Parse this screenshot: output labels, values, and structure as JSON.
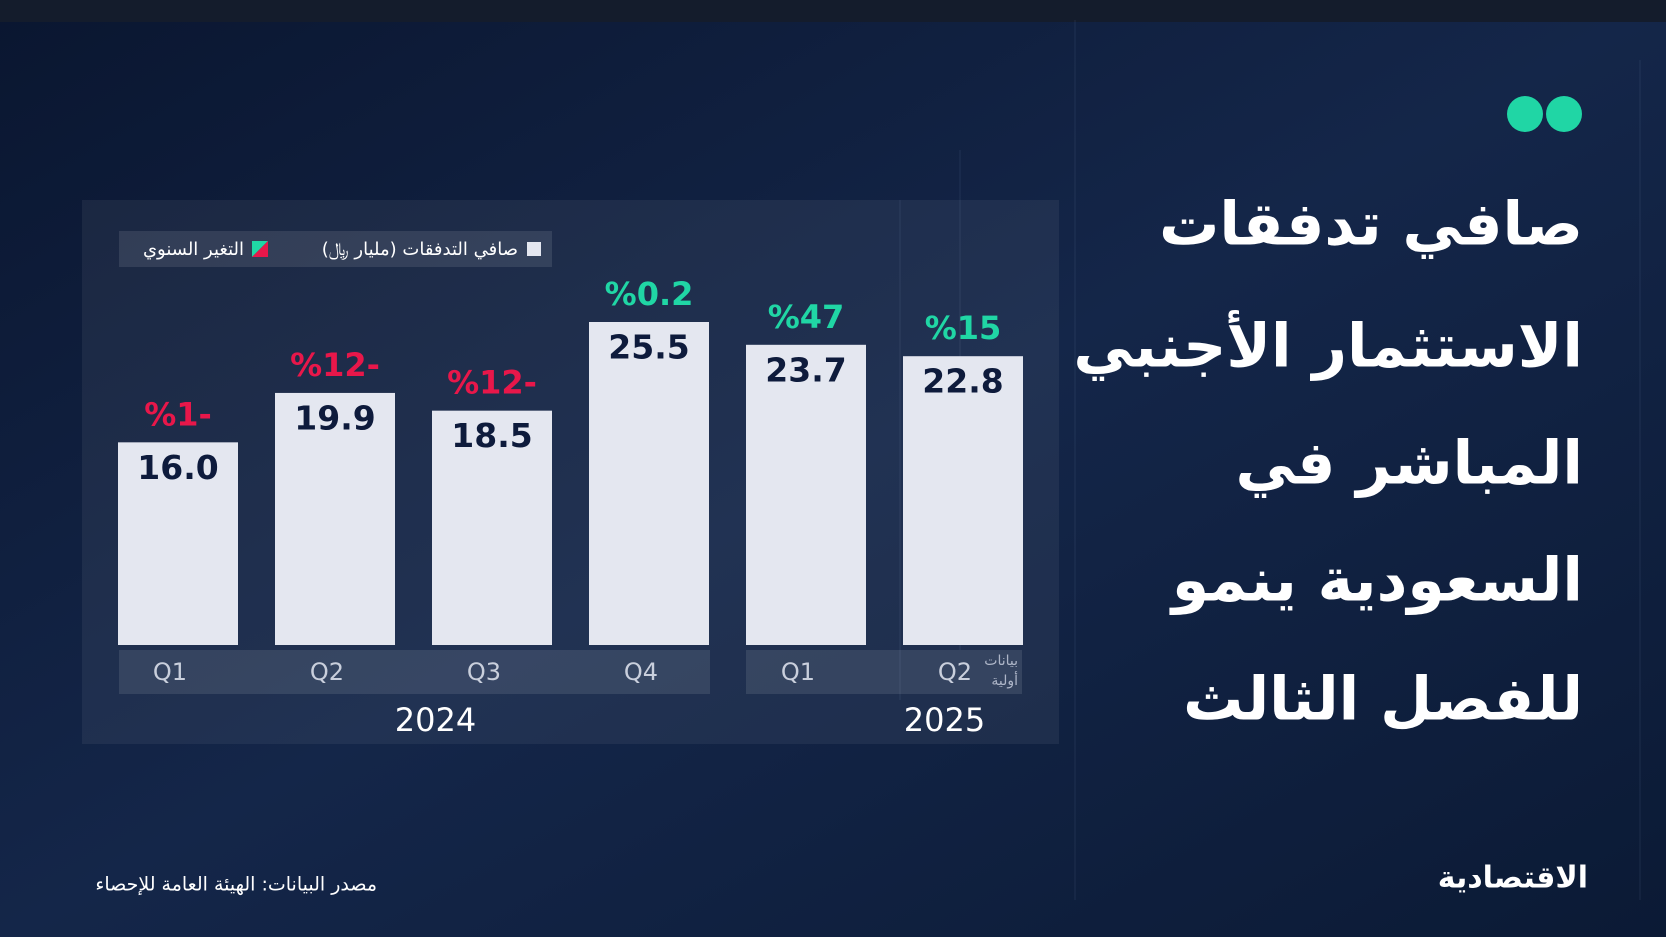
{
  "chart_data": {
    "type": "bar",
    "title_lines": [
      "صافي تدفقات",
      "الاستثمار الأجنبي",
      "المباشر في",
      "السعودية ينمو",
      "للفصل الثالث"
    ],
    "groups": [
      {
        "name": "2024",
        "categories": [
          "Q1",
          "Q2",
          "Q3",
          "Q4"
        ]
      },
      {
        "name": "2025",
        "categories": [
          "Q1",
          "Q2"
        ]
      }
    ],
    "series": [
      {
        "name": "صافي التدفقات (مليار ﷼)",
        "color": "#e4e7f0",
        "values": [
          16.0,
          19.9,
          18.5,
          25.5,
          23.7,
          22.8
        ],
        "value_labels": [
          "16.0",
          "19.9",
          "18.5",
          "25.5",
          "23.7",
          "22.8"
        ]
      },
      {
        "name": "التغير السنوي",
        "negative_color": "#e8174a",
        "positive_color": "#20d6a5",
        "values": [
          -1,
          -12,
          -12,
          0.2,
          47,
          15
        ],
        "value_labels": [
          "%1-",
          "%12-",
          "%12-",
          "%0.2",
          "%47",
          "%15"
        ]
      }
    ],
    "note_lines": [
      "بيانات",
      "أولية"
    ],
    "source": "مصدر البيانات: الهيئة العامة للإحصاء",
    "publisher": "الاقتصادية"
  }
}
